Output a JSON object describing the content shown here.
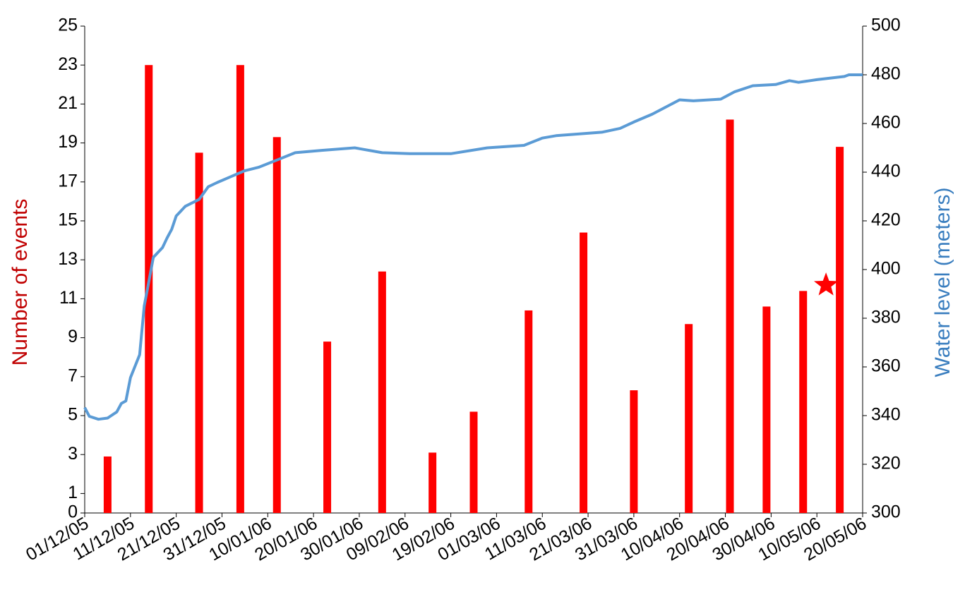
{
  "chart_data": {
    "type": "bar",
    "y_label": "Number of events",
    "y_label_color": "#c00000",
    "y2_label": "Water level (meters)",
    "y2_label_color": "#3a7ebf",
    "xlim": [
      "01/12/05",
      "20/05/06"
    ],
    "xticks": [
      "01/12/05",
      "11/12/05",
      "21/12/05",
      "31/12/05",
      "10/01/06",
      "20/01/06",
      "30/01/06",
      "09/02/06",
      "19/02/06",
      "01/03/06",
      "11/03/06",
      "21/03/06",
      "31/03/06",
      "10/04/06",
      "20/04/06",
      "30/04/06",
      "10/05/06",
      "20/05/06"
    ],
    "ylim": [
      0,
      25
    ],
    "yticks": [
      0,
      1,
      3,
      5,
      7,
      9,
      11,
      13,
      15,
      17,
      19,
      21,
      23,
      25
    ],
    "y2lim": [
      300,
      500
    ],
    "y2ticks": [
      300,
      320,
      340,
      360,
      380,
      400,
      420,
      440,
      460,
      480,
      500
    ],
    "series": [
      {
        "type": "bar",
        "color": "#ff0000",
        "x": [
          "06/12/05",
          "15/12/05",
          "26/12/05",
          "04/01/06",
          "12/01/06",
          "23/01/06",
          "04/02/06",
          "15/02/06",
          "24/02/06",
          "08/03/06",
          "20/03/06",
          "31/03/06",
          "12/04/06",
          "21/04/06",
          "29/04/06",
          "07/05/06",
          "15/05/06"
        ],
        "values": [
          2.9,
          23,
          18.5,
          23,
          19.3,
          8.8,
          12.4,
          3.1,
          5.2,
          10.4,
          14.4,
          6.3,
          9.7,
          20.2,
          10.6,
          11.4,
          18.8
        ]
      },
      {
        "type": "line",
        "axis": "y2",
        "color": "#5b9bd5",
        "x": [
          "01/12/05",
          "02/12/05",
          "04/12/05",
          "06/12/05",
          "08/12/05",
          "09/12/05",
          "10/12/05",
          "11/12/05",
          "13/12/05",
          "14/12/05",
          "15/12/05",
          "16/12/05",
          "18/12/05",
          "19/12/05",
          "20/12/05",
          "21/12/05",
          "23/12/05",
          "26/12/05",
          "28/12/05",
          "30/12/05",
          "02/01/06",
          "05/01/06",
          "08/01/06",
          "12/01/06",
          "16/01/06",
          "22/01/06",
          "29/01/06",
          "04/02/06",
          "10/02/06",
          "19/02/06",
          "27/02/06",
          "07/03/06",
          "11/03/06",
          "14/03/06",
          "24/03/06",
          "28/03/06",
          "31/03/06",
          "04/04/06",
          "10/04/06",
          "13/04/06",
          "19/04/06",
          "22/04/06",
          "26/04/06",
          "01/05/06",
          "04/05/06",
          "06/05/06",
          "10/05/06",
          "16/05/06",
          "17/05/06",
          "20/05/06"
        ],
        "values": [
          343.3,
          339.7,
          338.5,
          339,
          341.5,
          345,
          346,
          355.6,
          365,
          385,
          395,
          405,
          409,
          413,
          416.5,
          422,
          426,
          428.8,
          434,
          435.8,
          438.2,
          440.6,
          442,
          445,
          448,
          449,
          450,
          448,
          447.6,
          447.6,
          450,
          451,
          454,
          455,
          456.4,
          458,
          460.6,
          463.8,
          469.7,
          469.3,
          470,
          473,
          475.5,
          476,
          477.6,
          476.9,
          478,
          479.3,
          480,
          480
        ]
      }
    ],
    "star": {
      "x": "12/05/06",
      "value": 11.7,
      "color": "#ff0000"
    }
  }
}
